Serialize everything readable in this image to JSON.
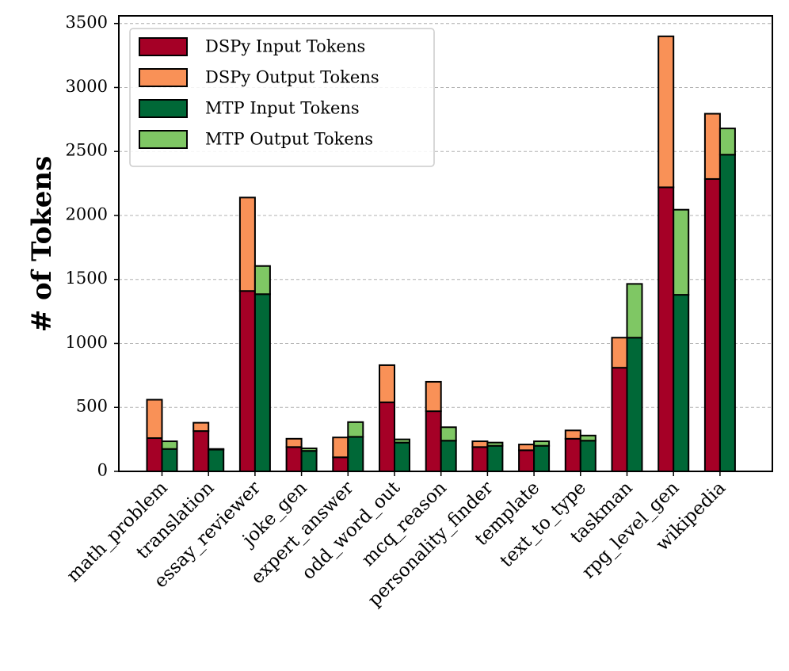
{
  "chart_data": {
    "type": "bar",
    "stacked": true,
    "grouped": true,
    "title": "",
    "xlabel": "",
    "ylabel": "# of Tokens",
    "ylim": [
      0,
      3560
    ],
    "yticks": [
      0,
      500,
      1000,
      1500,
      2000,
      2500,
      3000,
      3500
    ],
    "grid": "y-dashed",
    "legend_position": "top-left",
    "categories": [
      "math_problem",
      "translation",
      "essay_reviewer",
      "joke_gen",
      "expert_answer",
      "odd_word_out",
      "mcq_reason",
      "personality_finder",
      "template",
      "text_to_type",
      "taskman",
      "rpg_level_gen",
      "wikipedia"
    ],
    "series": [
      {
        "name": "DSPy Input Tokens",
        "group": "DSPy",
        "color": "#a50026",
        "values": [
          260,
          315,
          1410,
          190,
          110,
          540,
          470,
          190,
          165,
          255,
          810,
          2220,
          2285
        ]
      },
      {
        "name": "DSPy Output Tokens",
        "group": "DSPy",
        "color": "#f99157",
        "values": [
          300,
          65,
          730,
          65,
          155,
          290,
          230,
          45,
          45,
          65,
          235,
          1180,
          510
        ]
      },
      {
        "name": "MTP Input Tokens",
        "group": "MTP",
        "color": "#006837",
        "values": [
          175,
          170,
          1385,
          160,
          270,
          225,
          240,
          200,
          200,
          240,
          1045,
          1380,
          2475
        ]
      },
      {
        "name": "MTP Output Tokens",
        "group": "MTP",
        "color": "#7fc764",
        "values": [
          60,
          5,
          220,
          20,
          115,
          25,
          105,
          25,
          35,
          40,
          420,
          665,
          205
        ]
      }
    ]
  }
}
